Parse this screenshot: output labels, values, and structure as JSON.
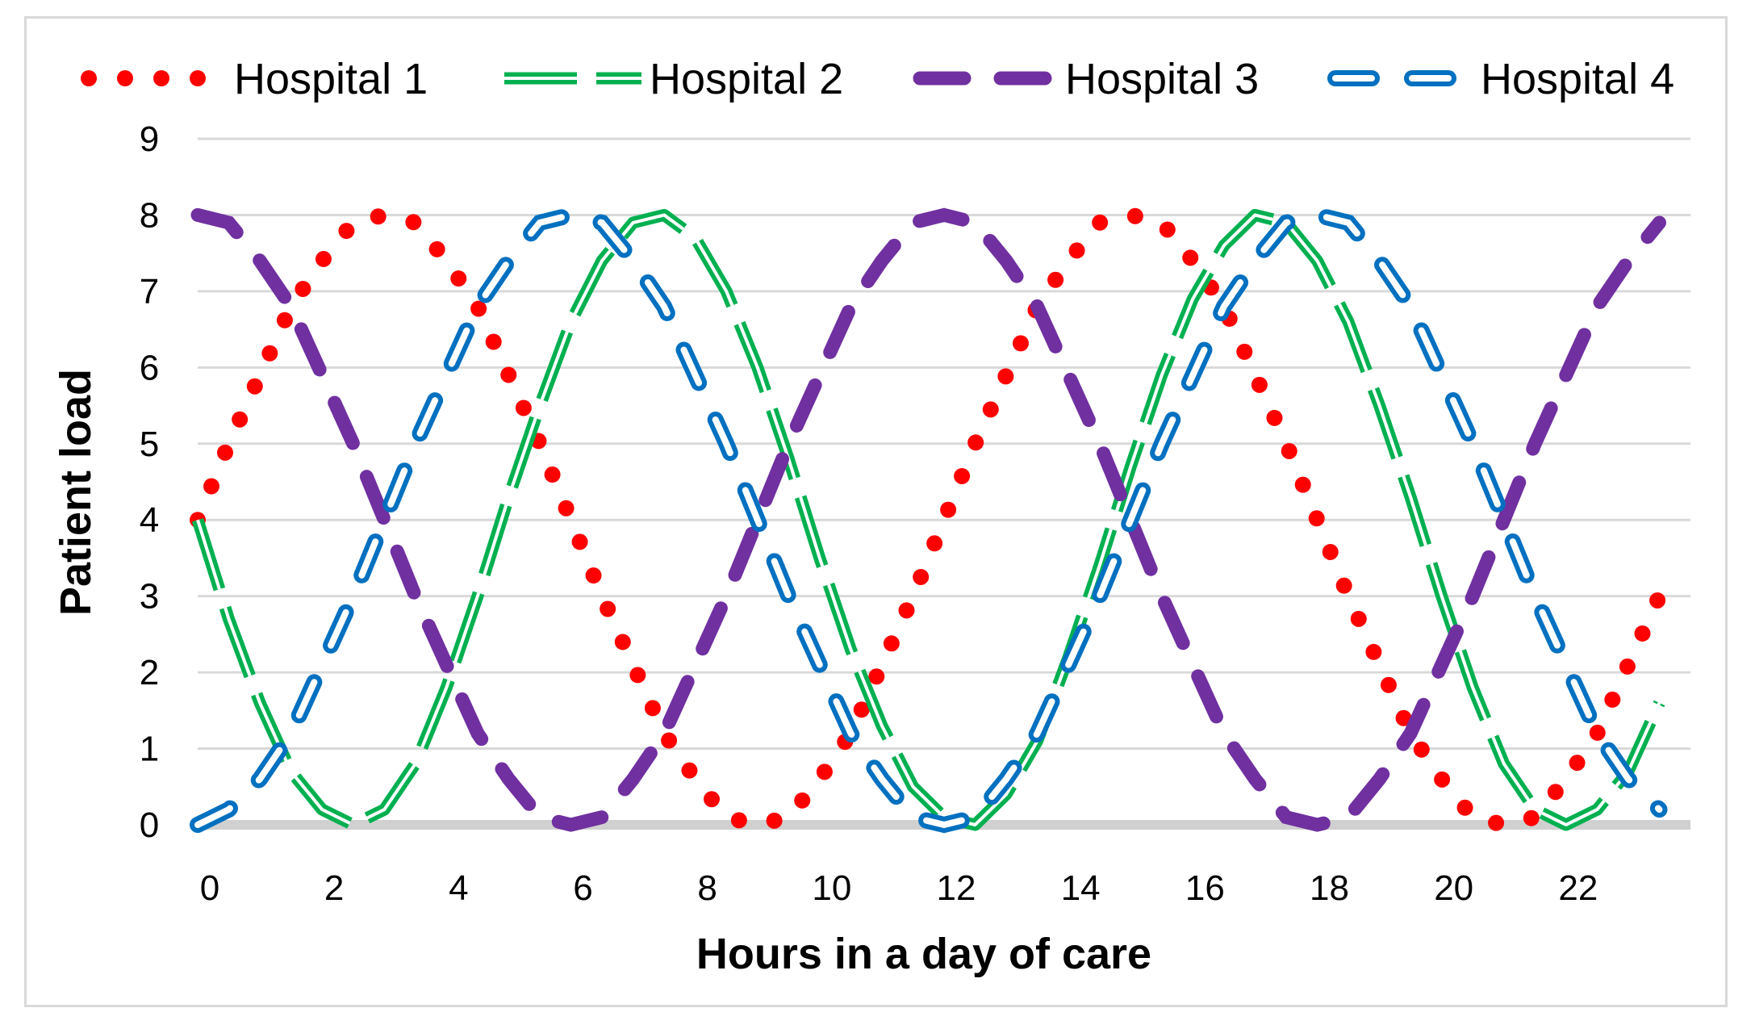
{
  "chart_data": {
    "type": "line",
    "title": "",
    "xlabel": "Hours in a day of care",
    "ylabel": "Patient load",
    "xlim": [
      0,
      24
    ],
    "ylim": [
      0,
      9
    ],
    "x_ticks": [
      0,
      2,
      4,
      6,
      8,
      10,
      12,
      14,
      16,
      18,
      20,
      22
    ],
    "y_ticks": [
      0,
      1,
      2,
      3,
      4,
      5,
      6,
      7,
      8,
      9
    ],
    "grid": "horizontal",
    "legend_position": "top",
    "x": [
      0,
      0.5,
      1,
      1.5,
      2,
      2.5,
      3,
      3.5,
      4,
      4.5,
      5,
      5.5,
      6,
      6.5,
      7,
      7.5,
      8,
      8.5,
      9,
      9.5,
      10,
      10.5,
      11,
      11.5,
      12,
      12.5,
      13,
      13.5,
      14,
      14.5,
      15,
      15.5,
      16,
      16.5,
      17,
      17.5,
      18,
      18.5,
      19,
      19.5,
      20,
      20.5,
      21,
      21.5,
      22,
      22.5,
      23,
      23.5
    ],
    "series": [
      {
        "name": "Hospital 1",
        "color": "#ff0000",
        "style": "dotted",
        "values": [
          4.0,
          5.0,
          5.9,
          6.8,
          7.4,
          7.9,
          8.0,
          7.9,
          7.4,
          6.8,
          5.9,
          5.0,
          4.0,
          3.0,
          2.1,
          1.2,
          0.6,
          0.1,
          0.0,
          0.1,
          0.6,
          1.2,
          2.1,
          3.0,
          4.0,
          5.0,
          5.9,
          6.8,
          7.4,
          7.9,
          8.0,
          7.9,
          7.4,
          6.8,
          5.9,
          5.0,
          4.0,
          3.0,
          2.1,
          1.2,
          0.6,
          0.1,
          0.0,
          0.1,
          0.6,
          1.2,
          2.1,
          3.0
        ]
      },
      {
        "name": "Hospital 2",
        "color": "#00b050",
        "style": "double-dashed",
        "values": [
          4.0,
          2.7,
          1.6,
          0.7,
          0.2,
          0.0,
          0.2,
          0.8,
          1.8,
          3.0,
          4.3,
          5.5,
          6.6,
          7.4,
          7.9,
          8.0,
          7.7,
          7.0,
          6.0,
          4.8,
          3.5,
          2.3,
          1.3,
          0.5,
          0.1,
          0.0,
          0.4,
          1.1,
          2.2,
          3.4,
          4.7,
          5.9,
          6.9,
          7.6,
          8.0,
          7.9,
          7.4,
          6.6,
          5.5,
          4.3,
          3.0,
          1.8,
          0.8,
          0.2,
          0.0,
          0.2,
          0.7,
          1.6
        ]
      },
      {
        "name": "Hospital 3",
        "color": "#7030a0",
        "style": "long-dash",
        "values": [
          8.0,
          7.9,
          7.4,
          6.8,
          5.9,
          5.0,
          4.0,
          3.0,
          2.1,
          1.2,
          0.6,
          0.1,
          0.0,
          0.1,
          0.6,
          1.2,
          2.1,
          3.0,
          4.0,
          5.0,
          5.9,
          6.8,
          7.4,
          7.9,
          8.0,
          7.9,
          7.4,
          6.8,
          5.9,
          5.0,
          4.0,
          3.0,
          2.1,
          1.2,
          0.6,
          0.1,
          0.0,
          0.1,
          0.6,
          1.2,
          2.1,
          3.0,
          4.0,
          5.0,
          5.9,
          6.8,
          7.4,
          7.9
        ]
      },
      {
        "name": "Hospital 4",
        "color": "#0070c0",
        "style": "outlined-dash",
        "values": [
          0.0,
          0.2,
          0.6,
          1.2,
          2.1,
          3.0,
          4.0,
          5.0,
          5.9,
          6.8,
          7.4,
          7.9,
          8.0,
          7.9,
          7.4,
          6.8,
          5.9,
          5.0,
          4.0,
          3.0,
          2.1,
          1.2,
          0.6,
          0.1,
          0.0,
          0.1,
          0.6,
          1.2,
          2.1,
          3.0,
          4.0,
          5.0,
          5.9,
          6.8,
          7.4,
          7.9,
          8.0,
          7.9,
          7.4,
          6.8,
          5.9,
          5.0,
          4.0,
          3.0,
          2.1,
          1.2,
          0.6,
          0.2
        ]
      }
    ]
  }
}
